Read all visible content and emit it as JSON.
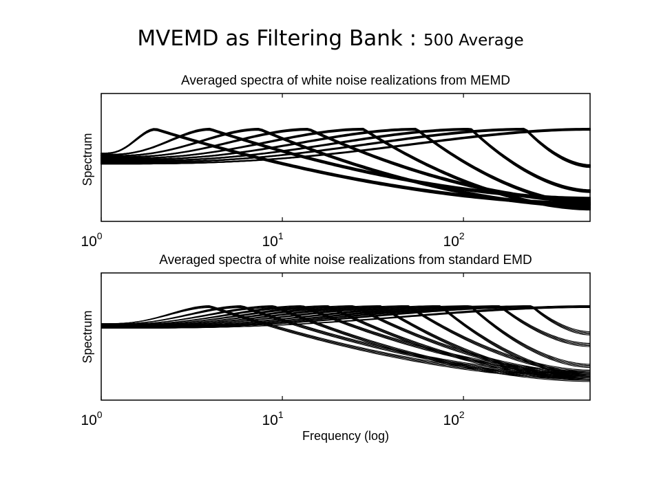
{
  "slide": {
    "title_main": "MVEMD as Filtering Bank : ",
    "title_small": "500 Average"
  },
  "chart_data": [
    {
      "type": "line",
      "title": "Averaged spectra of white noise realizations from MEMD",
      "ylabel": "Spectrum",
      "xlabel": "",
      "xscale": "log",
      "xlim": [
        1,
        500
      ],
      "xticks": [
        {
          "base": "10",
          "exp": "0",
          "value": 1
        },
        {
          "base": "10",
          "exp": "1",
          "value": 10
        },
        {
          "base": "10",
          "exp": "2",
          "value": 100
        }
      ],
      "yticks_shown": false,
      "grid": false,
      "legend": "none",
      "series_peaks": [
        2,
        4,
        7.5,
        14,
        28,
        55,
        110,
        220,
        500
      ],
      "series_tails": [
        0.88,
        0.84,
        0.9,
        0.86,
        0.92,
        0.88,
        0.78,
        0.58,
        0.4
      ],
      "lines_per_series": 3,
      "color": "#000000"
    },
    {
      "type": "line",
      "title": "Averaged spectra of white noise realizations from standard EMD",
      "ylabel": "Spectrum",
      "xlabel": "Frequency (log)",
      "xscale": "log",
      "xlim": [
        1,
        500
      ],
      "xticks": [
        {
          "base": "10",
          "exp": "0",
          "value": 1
        },
        {
          "base": "10",
          "exp": "1",
          "value": 10
        },
        {
          "base": "10",
          "exp": "2",
          "value": 100
        }
      ],
      "yticks_shown": false,
      "grid": false,
      "legend": "none",
      "series_peaks": [
        4,
        6,
        9,
        13,
        18,
        25,
        35,
        50,
        75,
        110,
        160,
        240,
        500
      ],
      "series_tails": [
        0.9,
        0.88,
        0.92,
        0.86,
        0.9,
        0.87,
        0.91,
        0.85,
        0.88,
        0.8,
        0.62,
        0.52,
        0.4
      ],
      "lines_per_series": 4,
      "color": "#000000"
    }
  ]
}
